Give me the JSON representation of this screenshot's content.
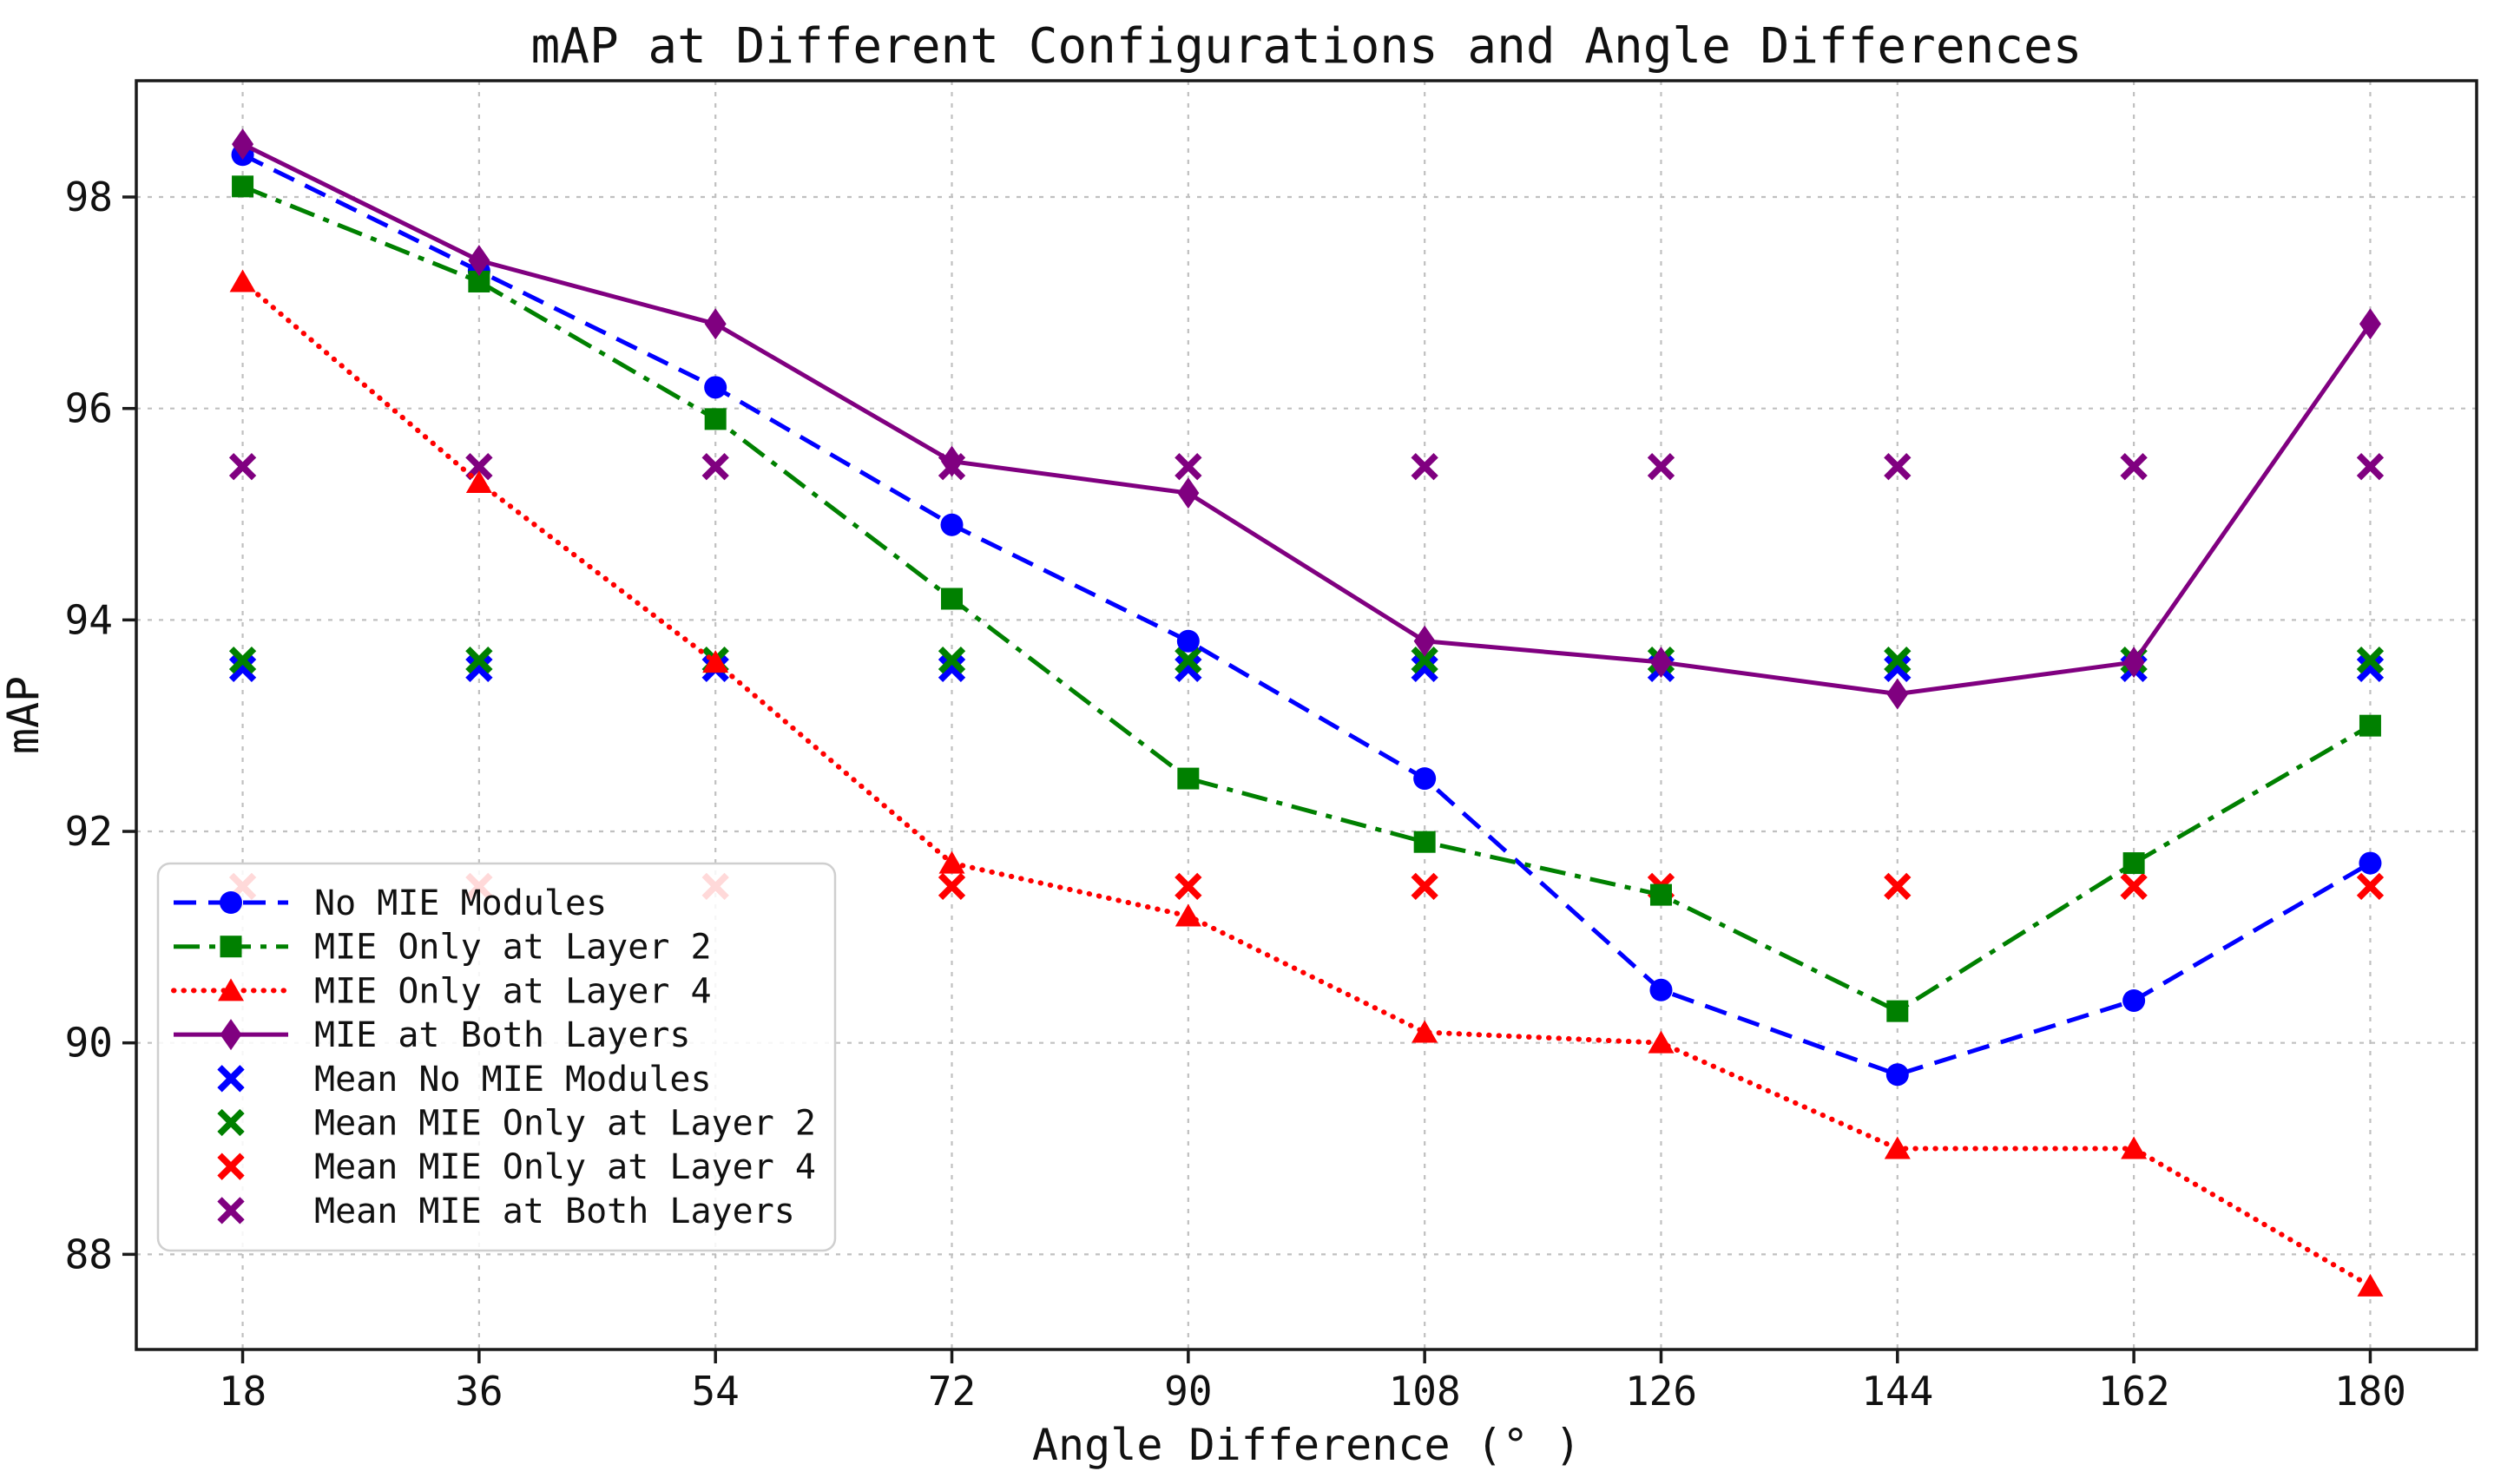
{
  "chart_data": {
    "type": "line",
    "title": "mAP at Different Configurations and Angle Differences",
    "xlabel": "Angle Difference (° )",
    "ylabel": "mAP",
    "x": [
      18,
      36,
      54,
      72,
      90,
      108,
      126,
      144,
      162,
      180
    ],
    "xticks": [
      18,
      36,
      54,
      72,
      90,
      108,
      126,
      144,
      162,
      180
    ],
    "yticks": [
      88,
      90,
      92,
      94,
      96,
      98
    ],
    "xlim": [
      9.9,
      188.1
    ],
    "ylim": [
      87.1,
      99.1
    ],
    "grid": true,
    "legend_position": "lower left",
    "series": [
      {
        "name": "No MIE Modules",
        "color": "#0000ff",
        "linestyle": "dashed",
        "marker": "circle",
        "values": [
          98.4,
          97.3,
          96.2,
          94.9,
          93.8,
          92.5,
          90.5,
          89.7,
          90.4,
          91.7
        ]
      },
      {
        "name": "MIE Only at Layer 2",
        "color": "#008000",
        "linestyle": "dashdot",
        "marker": "square",
        "values": [
          98.1,
          97.2,
          95.9,
          94.2,
          92.5,
          91.9,
          91.4,
          90.3,
          91.7,
          93.0
        ]
      },
      {
        "name": "MIE Only at Layer 4",
        "color": "#ff0000",
        "linestyle": "dotted",
        "marker": "triangle",
        "values": [
          97.2,
          95.3,
          93.6,
          91.7,
          91.2,
          90.1,
          90.0,
          89.0,
          89.0,
          87.7
        ]
      },
      {
        "name": "MIE at Both Layers",
        "color": "#800080",
        "linestyle": "solid",
        "marker": "diamond",
        "values": [
          98.5,
          97.4,
          96.8,
          95.5,
          95.2,
          93.8,
          93.6,
          93.3,
          93.6,
          96.8
        ]
      }
    ],
    "mean_series": [
      {
        "name": "Mean No MIE Modules",
        "color": "#0000ff",
        "marker": "x",
        "mean": 93.54
      },
      {
        "name": "Mean MIE Only at Layer 2",
        "color": "#008000",
        "marker": "x",
        "mean": 93.62
      },
      {
        "name": "Mean MIE Only at Layer 4",
        "color": "#ff0000",
        "marker": "x",
        "mean": 91.48
      },
      {
        "name": "Mean MIE at Both Layers",
        "color": "#800080",
        "marker": "x",
        "mean": 95.45
      }
    ],
    "colors": {
      "background": "#ffffff",
      "spine": "#1a1a1a",
      "grid": "#c0c0c0",
      "legend_border": "#cfcfcf"
    }
  }
}
